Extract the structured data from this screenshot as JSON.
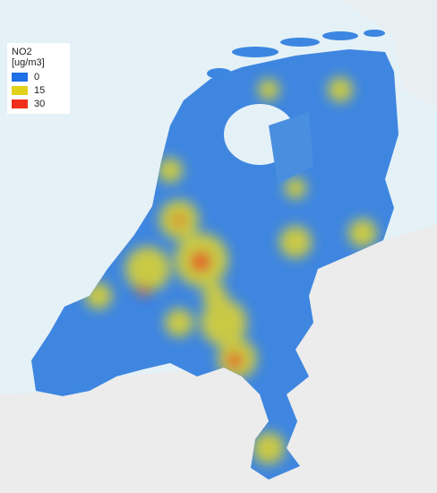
{
  "legend": {
    "title": "NO2 [ug/m3]",
    "items": [
      {
        "value": 0,
        "color": "#1f6fe6"
      },
      {
        "value": 15,
        "color": "#e0d21a"
      },
      {
        "value": 30,
        "color": "#f0301a"
      }
    ]
  }
}
